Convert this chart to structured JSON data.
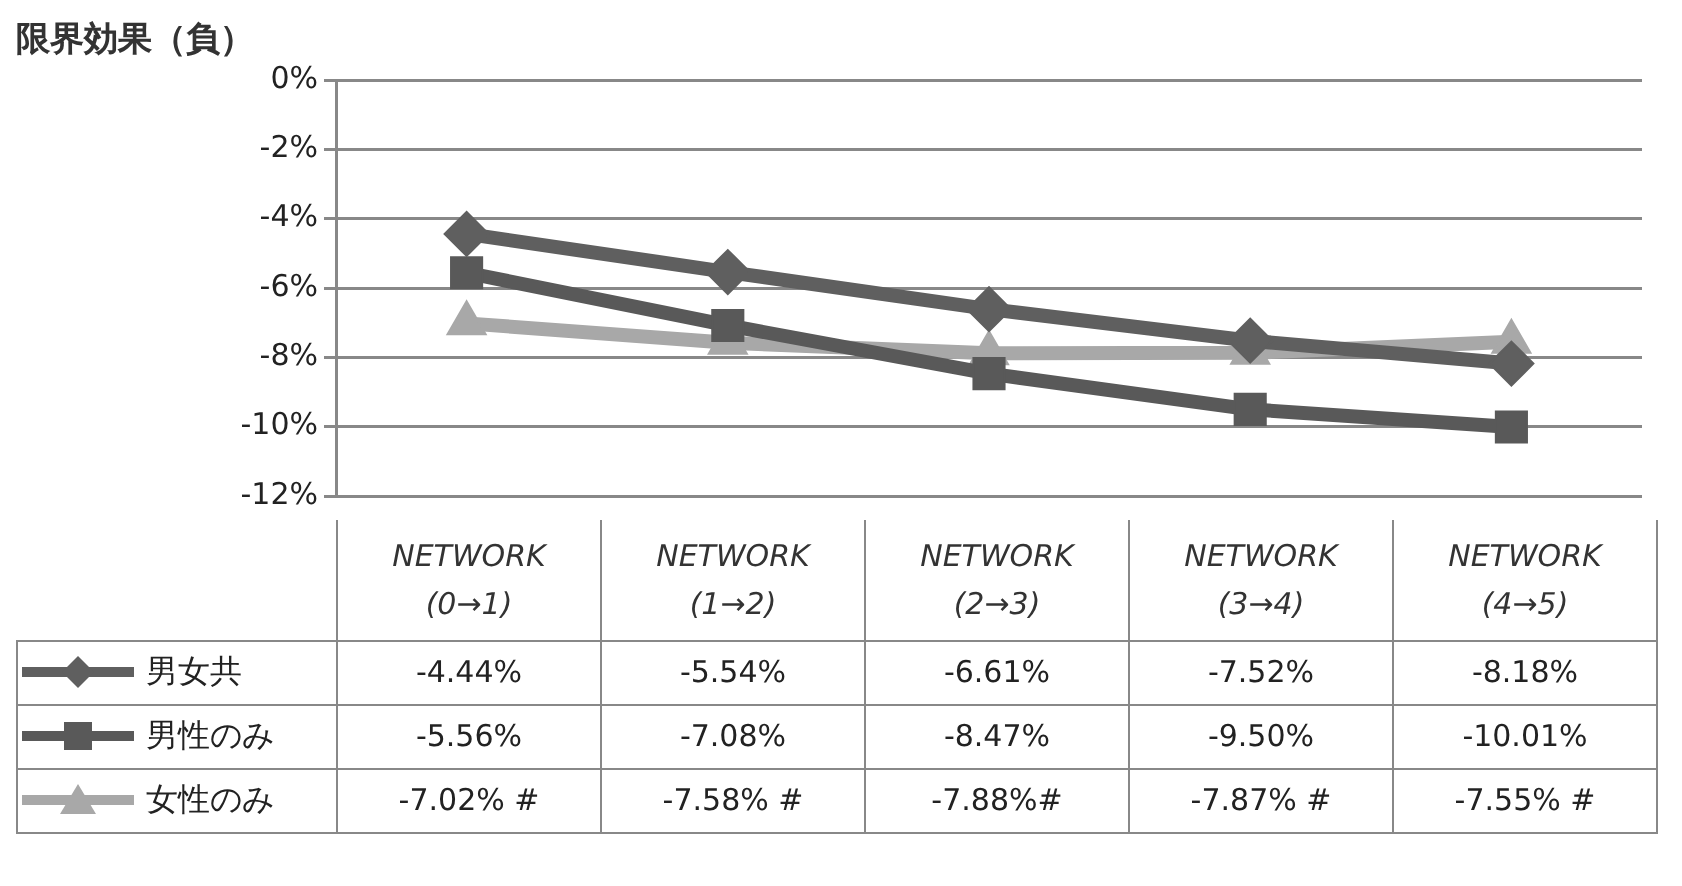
{
  "chart_data": {
    "type": "line",
    "ylabel": "限界効果（負）",
    "categories": [
      "NETWORK (0→1)",
      "NETWORK (1→2)",
      "NETWORK (2→3)",
      "NETWORK (3→4)",
      "NETWORK (4→5)"
    ],
    "series": [
      {
        "name": "男女共",
        "color": "#5f5f5f",
        "marker": "diamond",
        "values": [
          -4.44,
          -5.54,
          -6.61,
          -7.52,
          -8.18
        ],
        "value_labels": [
          "-4.44%",
          "-5.54%",
          "-6.61%",
          "-7.52%",
          "-8.18%"
        ]
      },
      {
        "name": "男性のみ",
        "color": "#595959",
        "marker": "square",
        "values": [
          -5.56,
          -7.08,
          -8.47,
          -9.5,
          -10.01
        ],
        "value_labels": [
          "-5.56%",
          "-7.08%",
          "-8.47%",
          "-9.50%",
          "-10.01%"
        ]
      },
      {
        "name": "女性のみ",
        "color": "#a8a8a8",
        "marker": "triangle",
        "values": [
          -7.02,
          -7.58,
          -7.88,
          -7.87,
          -7.55
        ],
        "value_labels": [
          "-7.02% #",
          "-7.58% #",
          "-7.88%#",
          "-7.87% #",
          "-7.55% #"
        ]
      }
    ],
    "ylim": [
      -12,
      0
    ],
    "yticks": [
      {
        "value": 0,
        "label": "0%"
      },
      {
        "value": -2,
        "label": "-2%"
      },
      {
        "value": -4,
        "label": "-4%"
      },
      {
        "value": -6,
        "label": "-6%"
      },
      {
        "value": -8,
        "label": "-8%"
      },
      {
        "value": -10,
        "label": "-10%"
      },
      {
        "value": -12,
        "label": "-12%"
      }
    ],
    "grid": "y",
    "legend": "bottom left"
  }
}
